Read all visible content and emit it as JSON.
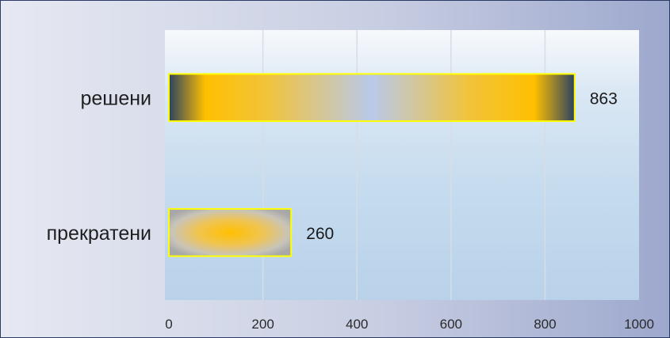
{
  "chart_data": {
    "type": "bar",
    "orientation": "horizontal",
    "categories": [
      "решени",
      "прекратени"
    ],
    "values": [
      863,
      260
    ],
    "data_labels": [
      "863",
      "260"
    ],
    "xlim": [
      0,
      1000
    ],
    "x_ticks": [
      "0",
      "200",
      "400",
      "600",
      "800",
      "1000"
    ],
    "grid": true,
    "title": "",
    "xlabel": "",
    "ylabel": "",
    "colors": {
      "bar_outline": "#ffff00",
      "bar_center": "#ffc000",
      "bar_edge_dark": "#2b4260",
      "bar_glow": "#aec2e8",
      "plot_background": "#c8dcee",
      "gridline": "#d7dde5"
    }
  }
}
